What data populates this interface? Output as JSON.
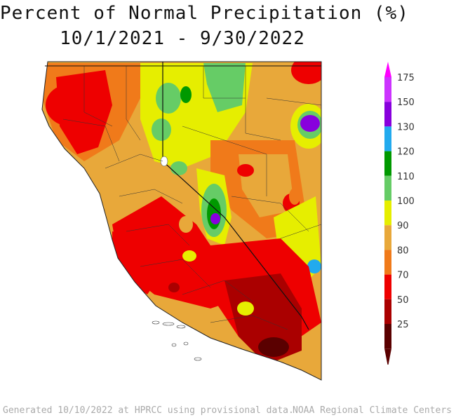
{
  "title": {
    "line1": "Percent of Normal Precipitation (%)",
    "line2": "10/1/2021 - 9/30/2022"
  },
  "legend": {
    "top_color": "#ff00ff",
    "bottom_color": "#5a0000",
    "bins": [
      {
        "label": "175",
        "color": "#cc33ff"
      },
      {
        "label": "150",
        "color": "#8800dd"
      },
      {
        "label": "130",
        "color": "#22aaee"
      },
      {
        "label": "120",
        "color": "#009900"
      },
      {
        "label": "110",
        "color": "#66cc66"
      },
      {
        "label": "100",
        "color": "#e6ee00"
      },
      {
        "label": "90",
        "color": "#e8a83a"
      },
      {
        "label": "80",
        "color": "#f07a1a"
      },
      {
        "label": "70",
        "color": "#ee0000"
      },
      {
        "label": "50",
        "color": "#aa0000"
      },
      {
        "label": "25",
        "color": "#5a0000"
      }
    ]
  },
  "footer": {
    "left": "Generated 10/10/2022 at HPRCC using provisional data.",
    "right": "NOAA Regional Climate Centers"
  }
}
